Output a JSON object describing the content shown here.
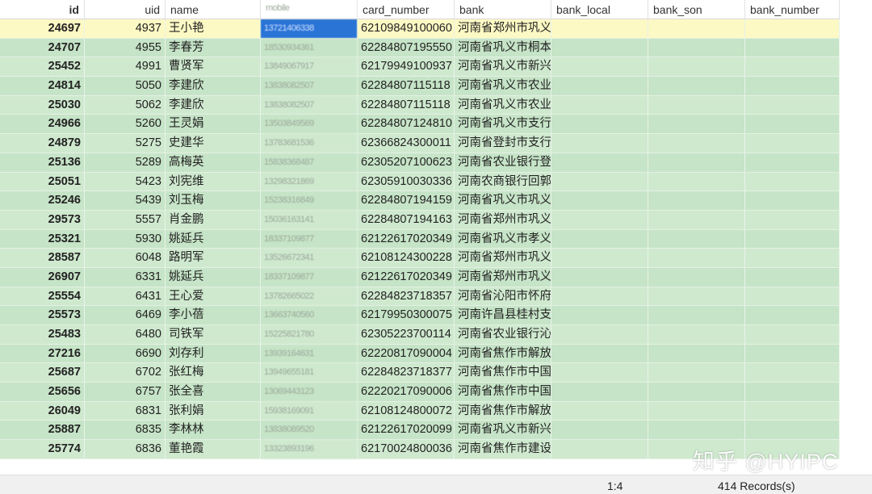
{
  "columns": [
    "id",
    "uid",
    "name",
    "mobile",
    "card_number",
    "bank",
    "bank_local",
    "bank_son",
    "bank_number"
  ],
  "selected_row": 0,
  "rows": [
    [
      "24697",
      "4937",
      "王小艳",
      "13721406338",
      "62109849100060",
      "河南省郑州市巩义",
      "",
      "",
      ""
    ],
    [
      "24707",
      "4955",
      "李春芳",
      "18530934361",
      "62284807195550",
      "河南省巩义市桐本",
      "",
      "",
      ""
    ],
    [
      "25452",
      "4991",
      "曹贤军",
      "13849067917",
      "62179949100937",
      "河南省巩义市新兴",
      "",
      "",
      ""
    ],
    [
      "24814",
      "5050",
      "李建欣",
      "13838082507",
      "62284807115118",
      "河南省巩义市农业",
      "",
      "",
      ""
    ],
    [
      "25030",
      "5062",
      "李建欣",
      "13838082507",
      "62284807115118",
      "河南省巩义市农业",
      "",
      "",
      ""
    ],
    [
      "24966",
      "5260",
      "王灵娟",
      "13503849569",
      "62284807124810",
      "河南省巩义市支行",
      "",
      "",
      ""
    ],
    [
      "24879",
      "5275",
      "史建华",
      "13783681536",
      "62366824300011",
      "河南省登封市支行",
      "",
      "",
      ""
    ],
    [
      "25136",
      "5289",
      "高梅英",
      "15838368487",
      "62305207100623",
      "河南省农业银行登",
      "",
      "",
      ""
    ],
    [
      "25051",
      "5423",
      "刘宪维",
      "13298321869",
      "62305910030336",
      "河南农商银行回郭",
      "",
      "",
      ""
    ],
    [
      "25246",
      "5439",
      "刘玉梅",
      "15238316849",
      "62284807194159",
      "河南省巩义市巩义",
      "",
      "",
      ""
    ],
    [
      "29573",
      "5557",
      "肖金鹏",
      "15036163141",
      "62284807194163",
      "河南省郑州市巩义",
      "",
      "",
      ""
    ],
    [
      "25321",
      "5930",
      "姚延兵",
      "18337109877",
      "62122617020349",
      "河南省巩义市孝义",
      "",
      "",
      ""
    ],
    [
      "28587",
      "6048",
      "路明军",
      "13526672341",
      "62108124300228",
      "河南省郑州市巩义",
      "",
      "",
      ""
    ],
    [
      "26907",
      "6331",
      "姚延兵",
      "18337109877",
      "62122617020349",
      "河南省郑州市巩义",
      "",
      "",
      ""
    ],
    [
      "25554",
      "6431",
      "王心爱",
      "13782665022",
      "62284823718357",
      "河南省沁阳市怀府",
      "",
      "",
      ""
    ],
    [
      "25573",
      "6469",
      "李小蓓",
      "13663740560",
      "62179950300075",
      "河南许昌县桂村支",
      "",
      "",
      ""
    ],
    [
      "25483",
      "6480",
      "司铁军",
      "15225821780",
      "62305223700114",
      "河南省农业银行沁",
      "",
      "",
      ""
    ],
    [
      "27216",
      "6690",
      "刘存利",
      "13939164631",
      "62220817090004",
      "河南省焦作市解放",
      "",
      "",
      ""
    ],
    [
      "25687",
      "6702",
      "张红梅",
      "13949655181",
      "62284823718377",
      "河南省焦作市中国",
      "",
      "",
      ""
    ],
    [
      "25656",
      "6757",
      "张全喜",
      "13069443123",
      "62220217090006",
      "河南省焦作市中国",
      "",
      "",
      ""
    ],
    [
      "26049",
      "6831",
      "张利娟",
      "15938169091",
      "62108124800072",
      "河南省焦作市解放",
      "",
      "",
      ""
    ],
    [
      "25887",
      "6835",
      "李林林",
      "13838089520",
      "62122617020099",
      "河南省巩义市新兴",
      "",
      "",
      ""
    ],
    [
      "25774",
      "6836",
      "董艳霞",
      "13323893196",
      "62170024800036",
      "河南省焦作市建设",
      "",
      "",
      ""
    ]
  ],
  "status": {
    "position": "1:4",
    "records": "414 Records(s)"
  },
  "watermark": "知乎 @HYIPC",
  "colors": {
    "row_green": "#cfe9cf",
    "selected_row": "#fdf9c4",
    "selected_cell": "#2a74d6"
  }
}
